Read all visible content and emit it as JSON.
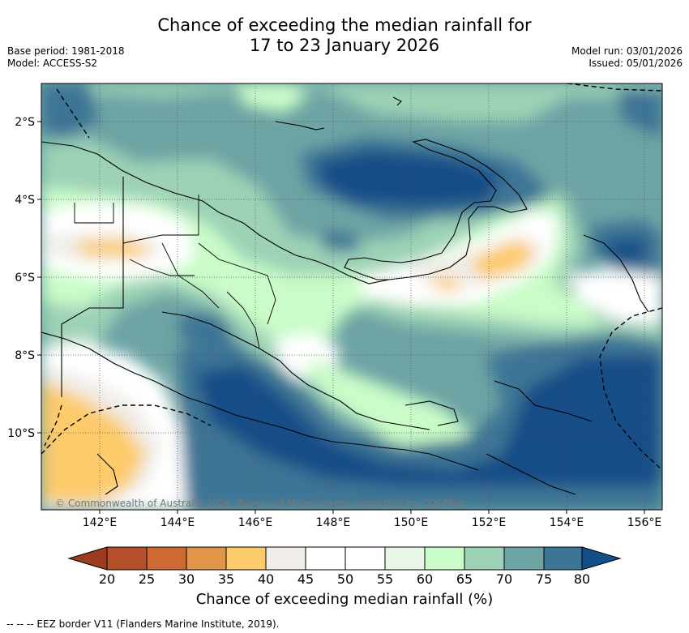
{
  "title": {
    "line1": "Chance of exceeding the median rainfall for",
    "line2": "17 to 23 January 2026"
  },
  "meta_left": {
    "base_period": "Base period: 1981-2018",
    "model": "Model: ACCESS-S2"
  },
  "meta_right": {
    "model_run": "Model run: 03/01/2026",
    "issued": "Issued: 05/01/2026"
  },
  "map": {
    "lat_labels": [
      "2°S",
      "4°S",
      "6°S",
      "8°S",
      "10°S"
    ],
    "lon_labels": [
      "142°E",
      "144°E",
      "146°E",
      "148°E",
      "150°E",
      "152°E",
      "154°E",
      "156°E"
    ],
    "copyright": "© Commonwealth of Australia 2026, Bureau of Meteorology, supported by COSPPac"
  },
  "colorbar": {
    "ticks": [
      "20",
      "25",
      "30",
      "35",
      "40",
      "45",
      "50",
      "55",
      "60",
      "65",
      "70",
      "75",
      "80"
    ],
    "label": "Chance of exceeding median rainfall (%)",
    "colors": {
      "lt20": "#9c3d1f",
      "20-25": "#b5502a",
      "25-30": "#cf6a35",
      "30-35": "#e09548",
      "35-40": "#fdcb6b",
      "40-45": "#f0ece7",
      "45-50": "#ffffff",
      "50-55": "#ffffff",
      "55-60": "#e9f7e6",
      "60-65": "#c9fcc8",
      "65-70": "#9dd2b6",
      "70-75": "#6da4a4",
      "75-80": "#3d7595",
      "gt80": "#124e87"
    }
  },
  "footer": {
    "eez": "-- -- -- EEZ border V11 (Flanders Marine Institute, 2019)."
  }
}
